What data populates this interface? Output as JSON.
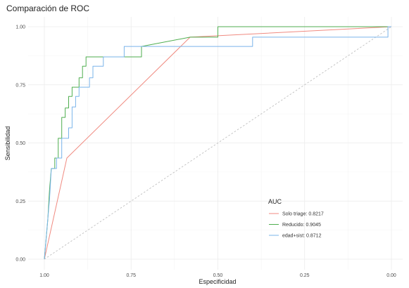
{
  "chart_data": {
    "type": "line",
    "title": "Comparación de ROC",
    "xlabel": "Especificidad",
    "ylabel": "Sensibilidad",
    "x_reversed": true,
    "xlim": [
      1.0,
      0.0
    ],
    "ylim": [
      0.0,
      1.0
    ],
    "x_ticks": [
      1.0,
      0.75,
      0.5,
      0.25,
      0.0
    ],
    "x_tick_labels": [
      "1.00",
      "0.75",
      "0.50",
      "0.25",
      "0.00"
    ],
    "y_ticks": [
      0.0,
      0.25,
      0.5,
      0.75,
      1.0
    ],
    "y_tick_labels": [
      "0.00",
      "0.25",
      "0.50",
      "0.75",
      "1.00"
    ],
    "grid": true,
    "legend": {
      "title": "AUC",
      "position": "bottom-right"
    },
    "reference_line": {
      "style": "dashed",
      "color": "#bfbfbf",
      "points": [
        [
          1.0,
          0.0
        ],
        [
          0.0,
          1.0
        ]
      ]
    },
    "series": [
      {
        "name": "Solo triage: 0.8217",
        "color": "#f08a80",
        "points": [
          [
            1.0,
            0.0
          ],
          [
            0.935,
            0.435
          ],
          [
            0.58,
            0.955
          ],
          [
            0.0,
            1.0
          ]
        ]
      },
      {
        "name": "Reducido: 0.9045",
        "color": "#4fae4f",
        "points": [
          [
            1.0,
            0.0
          ],
          [
            0.99,
            0.17
          ],
          [
            0.985,
            0.3
          ],
          [
            0.98,
            0.39
          ],
          [
            0.97,
            0.39
          ],
          [
            0.97,
            0.435
          ],
          [
            0.96,
            0.435
          ],
          [
            0.96,
            0.52
          ],
          [
            0.95,
            0.52
          ],
          [
            0.95,
            0.61
          ],
          [
            0.94,
            0.61
          ],
          [
            0.94,
            0.65
          ],
          [
            0.93,
            0.65
          ],
          [
            0.93,
            0.7
          ],
          [
            0.92,
            0.7
          ],
          [
            0.92,
            0.74
          ],
          [
            0.9,
            0.74
          ],
          [
            0.9,
            0.78
          ],
          [
            0.89,
            0.78
          ],
          [
            0.89,
            0.83
          ],
          [
            0.88,
            0.83
          ],
          [
            0.88,
            0.87
          ],
          [
            0.72,
            0.87
          ],
          [
            0.72,
            0.915
          ],
          [
            0.58,
            0.955
          ],
          [
            0.5,
            0.955
          ],
          [
            0.5,
            1.0
          ],
          [
            0.0,
            1.0
          ]
        ]
      },
      {
        "name": "edad+sist: 0.8712",
        "color": "#7ab4ea",
        "points": [
          [
            1.0,
            0.0
          ],
          [
            0.985,
            0.26
          ],
          [
            0.98,
            0.39
          ],
          [
            0.965,
            0.39
          ],
          [
            0.965,
            0.435
          ],
          [
            0.95,
            0.435
          ],
          [
            0.95,
            0.52
          ],
          [
            0.93,
            0.52
          ],
          [
            0.93,
            0.565
          ],
          [
            0.92,
            0.565
          ],
          [
            0.92,
            0.655
          ],
          [
            0.91,
            0.655
          ],
          [
            0.91,
            0.7
          ],
          [
            0.9,
            0.7
          ],
          [
            0.9,
            0.74
          ],
          [
            0.87,
            0.74
          ],
          [
            0.87,
            0.78
          ],
          [
            0.86,
            0.78
          ],
          [
            0.86,
            0.83
          ],
          [
            0.83,
            0.83
          ],
          [
            0.83,
            0.87
          ],
          [
            0.77,
            0.87
          ],
          [
            0.77,
            0.915
          ],
          [
            0.4,
            0.915
          ],
          [
            0.4,
            0.955
          ],
          [
            0.01,
            0.955
          ],
          [
            0.01,
            1.0
          ],
          [
            0.0,
            1.0
          ]
        ]
      }
    ]
  }
}
